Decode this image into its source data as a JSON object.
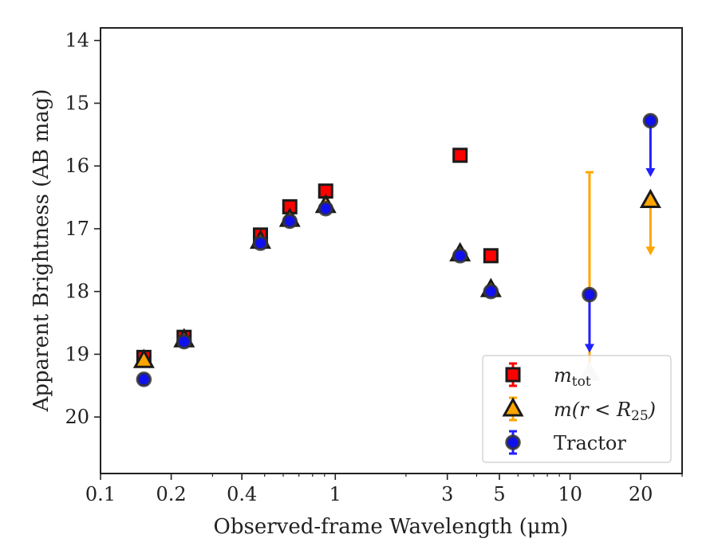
{
  "chart_data": {
    "type": "scatter",
    "title": "",
    "xlabel": "Observed-frame Wavelength (μm)",
    "ylabel": "Apparent Brightness (AB mag)",
    "xscale": "log",
    "xlim": [
      0.1,
      30
    ],
    "ylim": [
      20.9,
      13.8
    ],
    "y_inverted": true,
    "xticks": [
      {
        "value": 0.1,
        "label": "0.1"
      },
      {
        "value": 0.2,
        "label": "0.2"
      },
      {
        "value": 0.4,
        "label": "0.4"
      },
      {
        "value": 1,
        "label": "1"
      },
      {
        "value": 3,
        "label": "3"
      },
      {
        "value": 5,
        "label": "5"
      },
      {
        "value": 10,
        "label": "10"
      },
      {
        "value": 20,
        "label": "20"
      }
    ],
    "yticks": [
      {
        "value": 14,
        "label": "14"
      },
      {
        "value": 15,
        "label": "15"
      },
      {
        "value": 16,
        "label": "16"
      },
      {
        "value": 17,
        "label": "17"
      },
      {
        "value": 18,
        "label": "18"
      },
      {
        "value": 19,
        "label": "19"
      },
      {
        "value": 20,
        "label": "20"
      }
    ],
    "grid": false,
    "legend_position": "bottom-right",
    "series": [
      {
        "name": "m_tot",
        "legend_main": "m",
        "legend_sub": "tot",
        "marker": "square",
        "face_color": "#ff0000",
        "edge_color": "#1a1a1a",
        "errorbar_color": "#ff0000",
        "points": [
          {
            "x": 0.153,
            "y": 19.05,
            "err": 0.05
          },
          {
            "x": 0.227,
            "y": 18.73,
            "err": 0.05
          },
          {
            "x": 0.48,
            "y": 17.1,
            "err": 0.04
          },
          {
            "x": 0.64,
            "y": 16.65,
            "err": 0.04
          },
          {
            "x": 0.91,
            "y": 16.4,
            "err": 0.04
          },
          {
            "x": 3.4,
            "y": 15.83,
            "err": 0.03
          },
          {
            "x": 4.6,
            "y": 17.43,
            "err": 0.03
          }
        ]
      },
      {
        "name": "m(r<R_25)",
        "legend_main": "m(r < R",
        "legend_sub": "25",
        "legend_close": ")",
        "marker": "triangle",
        "face_color": "#ffa500",
        "edge_color": "#1a1a1a",
        "errorbar_color": "#ffa500",
        "points": [
          {
            "x": 0.153,
            "y": 19.1,
            "err": 0.05
          },
          {
            "x": 0.227,
            "y": 18.77,
            "err": 0.05
          },
          {
            "x": 0.48,
            "y": 17.2,
            "err": 0.04
          },
          {
            "x": 0.64,
            "y": 16.85,
            "err": 0.04
          },
          {
            "x": 0.91,
            "y": 16.63,
            "err": 0.04
          },
          {
            "x": 3.4,
            "y": 17.4,
            "err": 0.03
          },
          {
            "x": 4.6,
            "y": 17.97,
            "err": 0.03
          },
          {
            "x": 12.1,
            "y": 19.3,
            "err_low": 3.2,
            "err_high": 0.0,
            "marker_face": "#d9d9d9",
            "marker_edge": "#d9d9d9"
          },
          {
            "x": 22.0,
            "y": 16.55,
            "upper_limit_to": 17.4
          }
        ]
      },
      {
        "name": "Tractor",
        "legend_main": "Tractor",
        "marker": "circle",
        "face_color": "#1010ee",
        "edge_color": "#333333",
        "errorbar_color": "#2020ff",
        "points": [
          {
            "x": 0.153,
            "y": 19.4,
            "err": 0.08
          },
          {
            "x": 0.227,
            "y": 18.8,
            "err": 0.05
          },
          {
            "x": 0.48,
            "y": 17.23,
            "err": 0.04
          },
          {
            "x": 0.64,
            "y": 16.88,
            "err": 0.04
          },
          {
            "x": 0.91,
            "y": 16.68,
            "err": 0.04
          },
          {
            "x": 3.4,
            "y": 17.43,
            "err": 0.03
          },
          {
            "x": 4.6,
            "y": 18.0,
            "err": 0.03
          },
          {
            "x": 12.1,
            "y": 18.05,
            "upper_limit_to": 18.95
          },
          {
            "x": 22.0,
            "y": 15.28,
            "upper_limit_to": 16.15
          }
        ]
      }
    ]
  }
}
